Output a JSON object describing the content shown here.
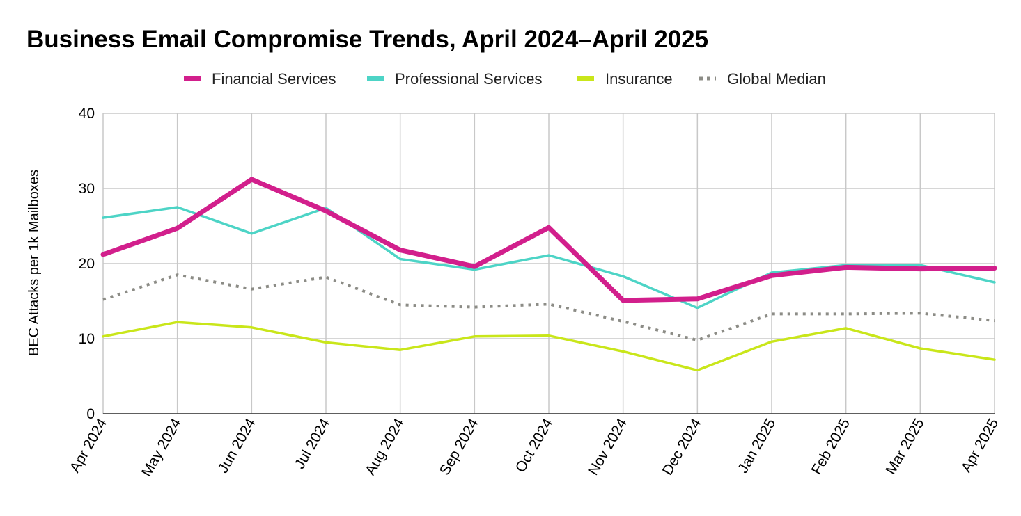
{
  "chart_data": {
    "type": "line",
    "title": "Business Email Compromise Trends, April 2024–April 2025",
    "xlabel": "",
    "ylabel": "BEC Attacks per 1k Mailboxes",
    "ylim": [
      0,
      40
    ],
    "yticks": [
      0,
      10,
      20,
      30,
      40
    ],
    "grid": true,
    "legend_position": "top",
    "categories": [
      "Apr 2024",
      "May 2024",
      "Jun 2024",
      "Jul 2024",
      "Aug 2024",
      "Sep 2024",
      "Oct 2024",
      "Nov 2024",
      "Dec 2024",
      "Jan 2025",
      "Feb 2025",
      "Mar 2025",
      "Apr 2025"
    ],
    "series": [
      {
        "name": "Financial Services",
        "color": "#d21f8c",
        "style": "solid-thick",
        "values": [
          21.2,
          24.7,
          31.2,
          27.0,
          21.8,
          19.6,
          24.8,
          15.1,
          15.3,
          18.4,
          19.5,
          19.3,
          19.4
        ]
      },
      {
        "name": "Professional Services",
        "color": "#4dd4c6",
        "style": "solid",
        "values": [
          26.1,
          27.5,
          24.0,
          27.4,
          20.6,
          19.2,
          21.1,
          18.3,
          14.1,
          18.8,
          19.8,
          19.8,
          17.5
        ]
      },
      {
        "name": "Insurance",
        "color": "#c9e61a",
        "style": "solid",
        "values": [
          10.3,
          12.2,
          11.5,
          9.5,
          8.5,
          10.3,
          10.4,
          8.3,
          5.8,
          9.6,
          11.4,
          8.7,
          7.2
        ]
      },
      {
        "name": "Global Median",
        "color": "#8c8c86",
        "style": "dotted",
        "values": [
          15.2,
          18.5,
          16.6,
          18.2,
          14.5,
          14.2,
          14.6,
          12.3,
          9.8,
          13.3,
          13.3,
          13.4,
          12.4
        ]
      }
    ]
  }
}
